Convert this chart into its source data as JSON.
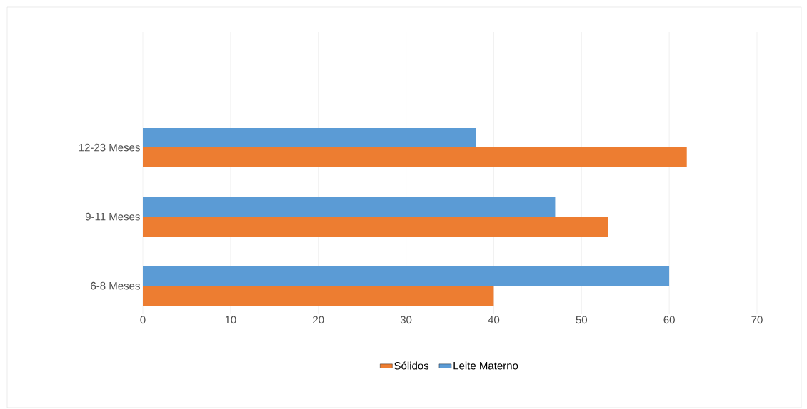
{
  "chart_data": {
    "type": "bar",
    "orientation": "horizontal",
    "categories": [
      "12-23 Meses",
      "9-11 Meses",
      "6-8 Meses"
    ],
    "series": [
      {
        "name": "Sólidos",
        "color": "#ed7d31",
        "values": [
          62,
          53,
          40
        ]
      },
      {
        "name": "Leite Materno",
        "color": "#5b9bd5",
        "values": [
          38,
          47,
          60
        ]
      }
    ],
    "xlim": [
      0,
      70
    ],
    "xticks": [
      0,
      10,
      20,
      30,
      40,
      50,
      60,
      70
    ],
    "grid": "x",
    "legend": "bottom"
  }
}
